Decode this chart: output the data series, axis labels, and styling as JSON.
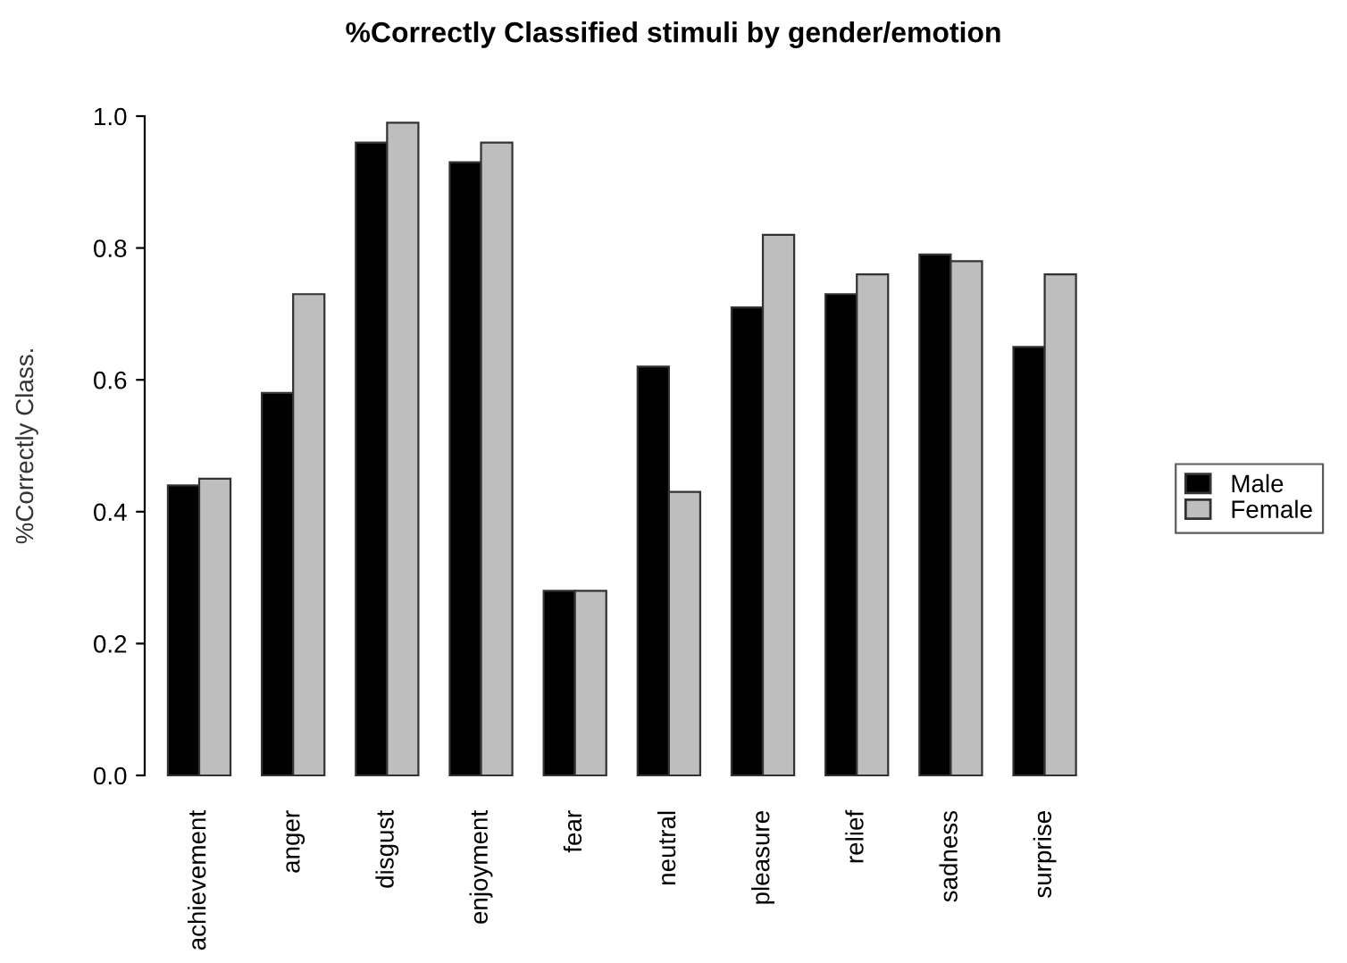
{
  "chart_data": {
    "type": "bar",
    "title": "%Correctly Classified stimuli by gender/emotion",
    "ylabel": "%Correctly Class.",
    "categories": [
      "achievement",
      "anger",
      "disgust",
      "enjoyment",
      "fear",
      "neutral",
      "pleasure",
      "relief",
      "sadness",
      "surprise"
    ],
    "series": [
      {
        "name": "Male",
        "color": "#000000",
        "values": [
          0.44,
          0.58,
          0.96,
          0.93,
          0.28,
          0.62,
          0.71,
          0.73,
          0.79,
          0.65
        ]
      },
      {
        "name": "Female",
        "color": "#bebebe",
        "values": [
          0.45,
          0.73,
          0.99,
          0.96,
          0.28,
          0.43,
          0.82,
          0.76,
          0.78,
          0.76
        ]
      }
    ],
    "ylim": [
      0,
      1.0
    ],
    "yticks": [
      {
        "value": 0,
        "label": "0.0"
      },
      0.2,
      0.4,
      0.6,
      0.8,
      {
        "value": 1,
        "label": "1.0"
      }
    ],
    "grid": false,
    "legend": "right"
  }
}
